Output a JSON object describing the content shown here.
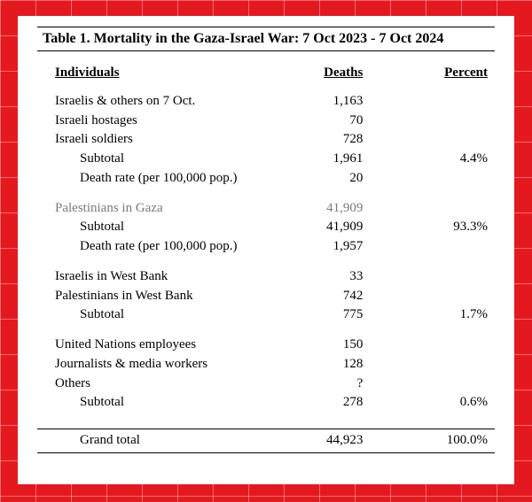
{
  "title": "Table 1. Mortality in the Gaza-Israel War: 7 Oct 2023 - 7 Oct 2024",
  "columns": {
    "label": "Individuals",
    "deaths": "Deaths",
    "percent": "Percent"
  },
  "sections": [
    {
      "rows": [
        {
          "label": "Israelis & others on 7 Oct.",
          "deaths": "1,163",
          "percent": ""
        },
        {
          "label": "Israeli hostages",
          "deaths": "70",
          "percent": ""
        },
        {
          "label": "Israeli soldiers",
          "deaths": "728",
          "percent": ""
        },
        {
          "label": "Subtotal",
          "indent": true,
          "deaths": "1,961",
          "percent": "4.4%"
        },
        {
          "label": "Death rate (per 100,000 pop.)",
          "indent": true,
          "deaths": "20",
          "percent": ""
        }
      ]
    },
    {
      "rows": [
        {
          "label": "Palestinians in Gaza",
          "deaths": "41,909",
          "percent": "",
          "grey": true
        },
        {
          "label": "Subtotal",
          "indent": true,
          "deaths": "41,909",
          "percent": "93.3%"
        },
        {
          "label": "Death rate (per 100,000 pop.)",
          "indent": true,
          "deaths": "1,957",
          "percent": ""
        }
      ]
    },
    {
      "rows": [
        {
          "label": "Israelis in West Bank",
          "deaths": "33",
          "percent": ""
        },
        {
          "label": "Palestinians in West Bank",
          "deaths": "742",
          "percent": ""
        },
        {
          "label": "Subtotal",
          "indent": true,
          "deaths": "775",
          "percent": "1.7%"
        }
      ]
    },
    {
      "rows": [
        {
          "label": "United Nations employees",
          "deaths": "150",
          "percent": ""
        },
        {
          "label": "Journalists & media workers",
          "deaths": "128",
          "percent": ""
        },
        {
          "label": "Others",
          "deaths": "?",
          "percent": ""
        },
        {
          "label": "Subtotal",
          "indent": true,
          "deaths": "278",
          "percent": "0.6%"
        }
      ]
    }
  ],
  "grand": {
    "label": "Grand total",
    "deaths": "44,923",
    "percent": "100.0%"
  }
}
